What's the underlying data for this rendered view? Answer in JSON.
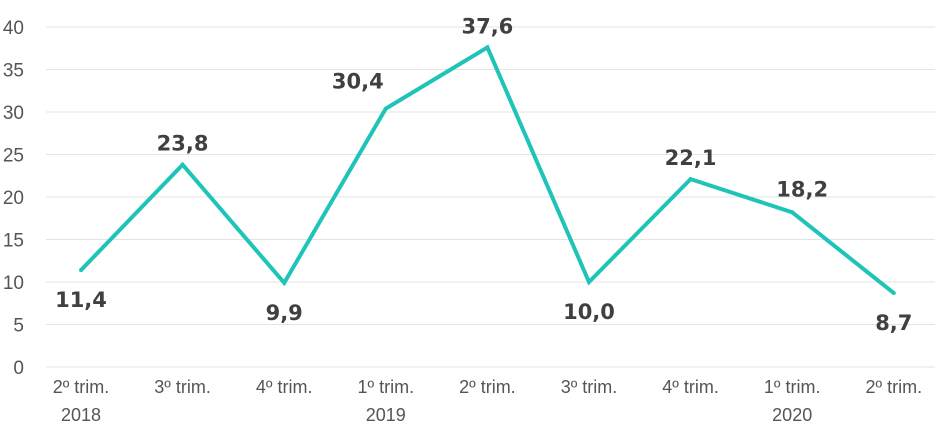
{
  "chart_data": {
    "type": "line",
    "categories": [
      "2º trim.",
      "3º trim.",
      "4º trim.",
      "1º trim.",
      "2º trim.",
      "3º trim.",
      "4º trim.",
      "1º trim.",
      "2º trim."
    ],
    "year_labels": [
      "2018",
      "",
      "",
      "2019",
      "",
      "",
      "",
      "2020",
      ""
    ],
    "series": [
      {
        "values": [
          11.4,
          23.8,
          9.9,
          30.4,
          37.6,
          10.0,
          22.1,
          18.2,
          8.7
        ],
        "labels": [
          "11,4",
          "23,8",
          "9,9",
          "30,4",
          "37,6",
          "10,0",
          "22,1",
          "18,2",
          "8,7"
        ]
      }
    ],
    "ylim": [
      0,
      40
    ],
    "yticks": [
      0,
      5,
      10,
      15,
      20,
      25,
      30,
      35,
      40
    ],
    "grid": true,
    "line_color": "#1fc4b8"
  }
}
